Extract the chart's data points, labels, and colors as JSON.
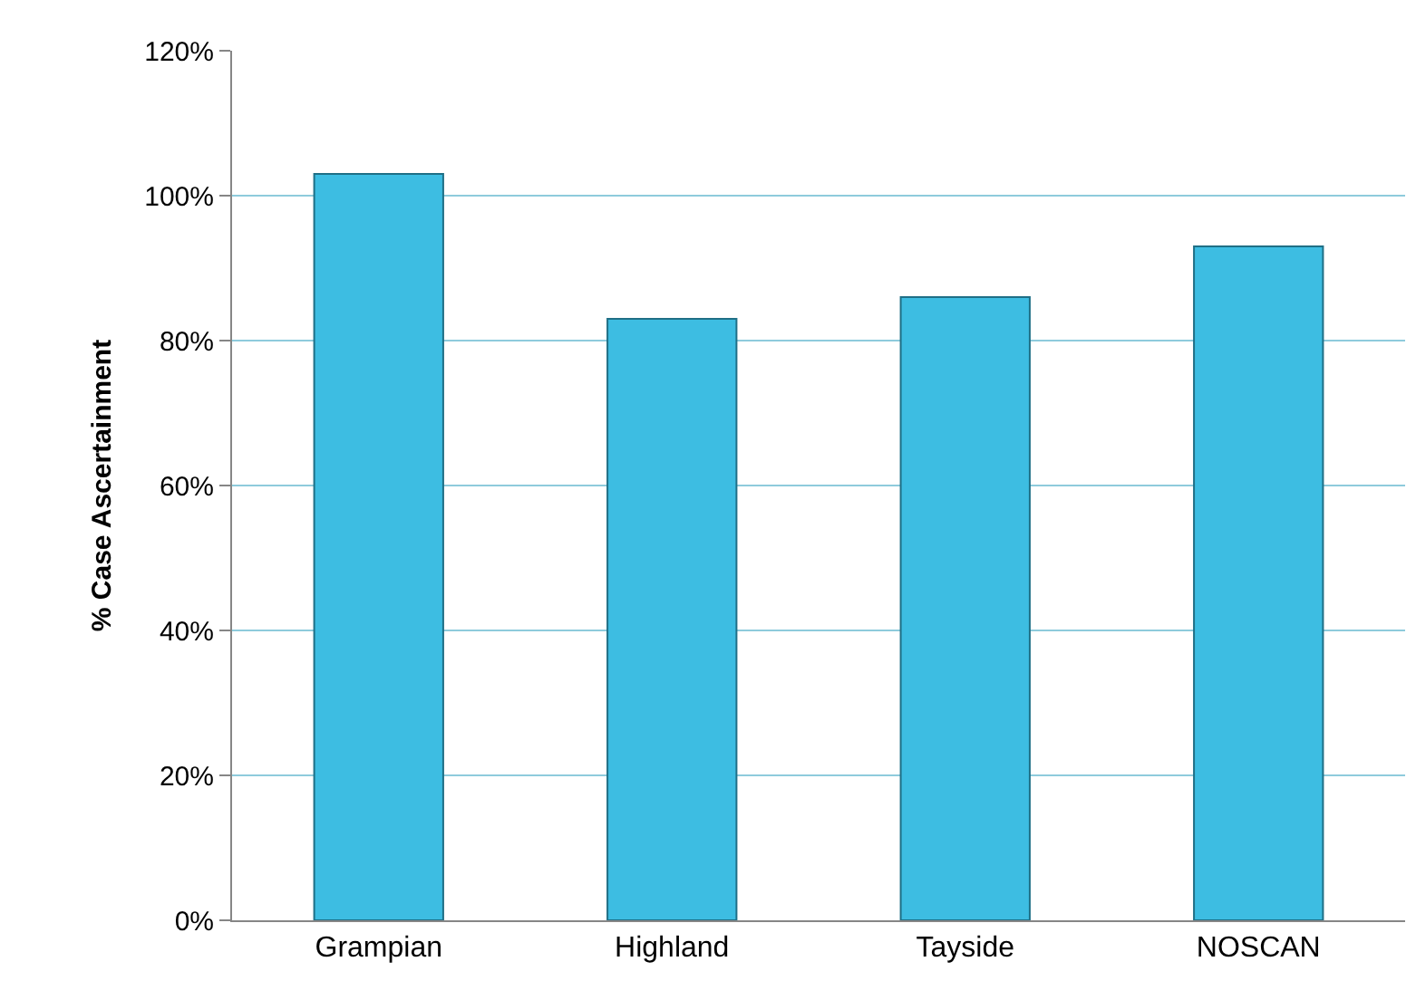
{
  "chart_data": {
    "type": "bar",
    "ylabel": "% Case Ascertainment",
    "categories": [
      "Grampian",
      "Highland",
      "Tayside",
      "NOSCAN"
    ],
    "values": [
      103,
      83,
      86,
      93
    ],
    "color": "#3dbde2",
    "ylim": [
      0,
      120
    ],
    "yticks": [
      {
        "value": 0,
        "label": "0%"
      },
      {
        "value": 20,
        "label": "20%"
      },
      {
        "value": 40,
        "label": "40%"
      },
      {
        "value": 60,
        "label": "60%"
      },
      {
        "value": 80,
        "label": "80%"
      },
      {
        "value": 100,
        "label": "100%"
      },
      {
        "value": 120,
        "label": "120%"
      }
    ],
    "grid": "y"
  }
}
